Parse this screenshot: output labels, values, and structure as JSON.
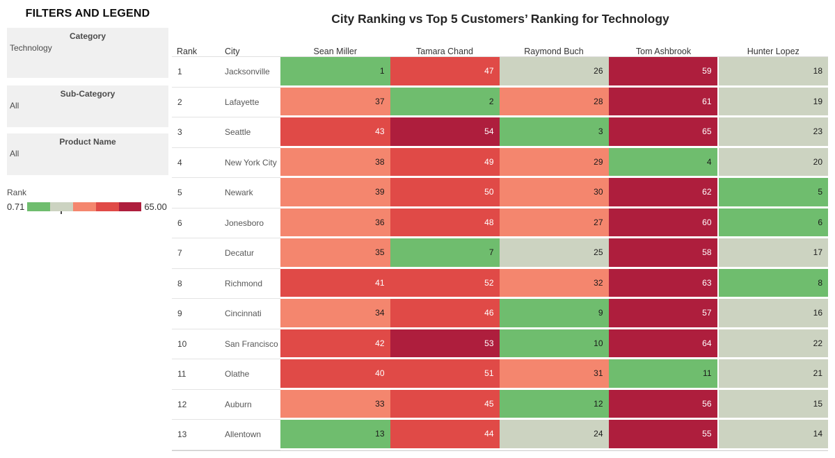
{
  "sidebar": {
    "title": "FILTERS AND LEGEND",
    "filters": [
      {
        "label": "Category",
        "value": "Technology"
      },
      {
        "label": "Sub-Category",
        "value": "All"
      },
      {
        "label": "Product Name",
        "value": "All"
      }
    ],
    "legend": {
      "label": "Rank",
      "min_label": "0.71",
      "max_label": "65.00"
    }
  },
  "chart_data": {
    "type": "heatmap",
    "title": "City Ranking vs Top 5 Customers’ Ranking for Technology",
    "columns": [
      "Rank",
      "City",
      "Sean Miller",
      "Tamara Chand",
      "Raymond Buch",
      "Tom Ashbrook",
      "Hunter Lopez"
    ],
    "rows": [
      {
        "rank": "1",
        "city": "Jacksonville",
        "values": [
          1,
          47,
          26,
          59,
          18
        ]
      },
      {
        "rank": "2",
        "city": "Lafayette",
        "values": [
          37,
          2,
          28,
          61,
          19
        ]
      },
      {
        "rank": "3",
        "city": "Seattle",
        "values": [
          43,
          54,
          3,
          65,
          23
        ]
      },
      {
        "rank": "4",
        "city": "New York City",
        "values": [
          38,
          49,
          29,
          4,
          20
        ]
      },
      {
        "rank": "5",
        "city": "Newark",
        "values": [
          39,
          50,
          30,
          62,
          5
        ]
      },
      {
        "rank": "6",
        "city": "Jonesboro",
        "values": [
          36,
          48,
          27,
          60,
          6
        ]
      },
      {
        "rank": "7",
        "city": "Decatur",
        "values": [
          35,
          7,
          25,
          58,
          17
        ]
      },
      {
        "rank": "8",
        "city": "Richmond",
        "values": [
          41,
          52,
          32,
          63,
          8
        ]
      },
      {
        "rank": "9",
        "city": "Cincinnati",
        "values": [
          34,
          46,
          9,
          57,
          16
        ]
      },
      {
        "rank": "10",
        "city": "San Francisco",
        "values": [
          42,
          53,
          10,
          64,
          22
        ]
      },
      {
        "rank": "11",
        "city": "Olathe",
        "values": [
          40,
          51,
          31,
          11,
          21
        ]
      },
      {
        "rank": "12",
        "city": "Auburn",
        "values": [
          33,
          45,
          12,
          56,
          15
        ]
      },
      {
        "rank": "13",
        "city": "Allentown",
        "values": [
          13,
          44,
          24,
          55,
          14
        ]
      }
    ],
    "color_scale": {
      "min": 0.71,
      "max": 65.0,
      "bucket_size": 13,
      "colors": [
        "#6fbd6e",
        "#ccd3c1",
        "#f4866e",
        "#e04a47",
        "#ae1e3d"
      ],
      "dark_text": "#1a1a1a",
      "light_text": "#ffffff"
    },
    "legend_position": "left"
  }
}
